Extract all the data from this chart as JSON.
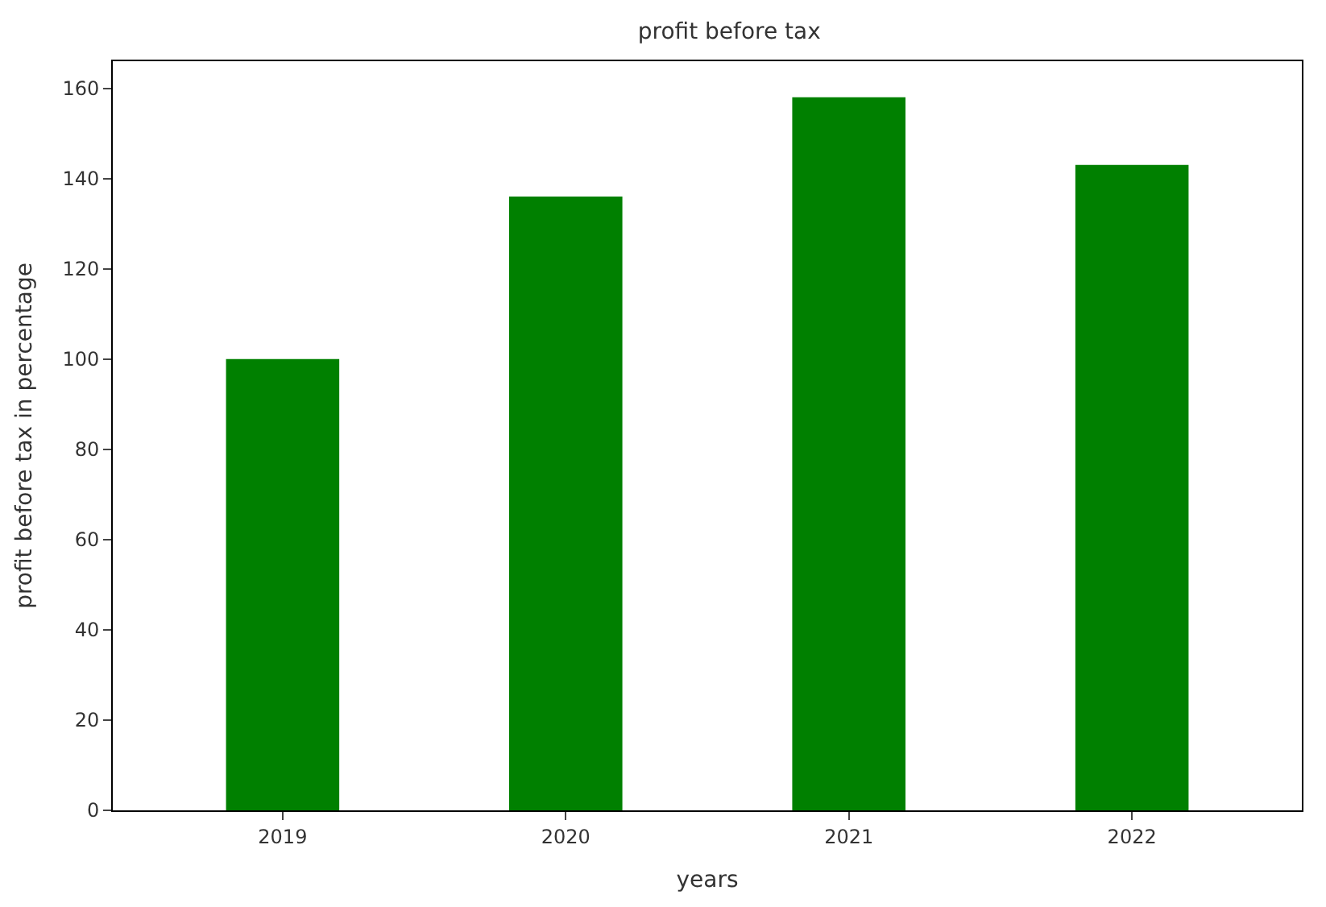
{
  "chart_data": {
    "type": "bar",
    "title": "profit before tax",
    "xlabel": "years",
    "ylabel": "profit before tax in percentage",
    "categories": [
      "2019",
      "2020",
      "2021",
      "2022"
    ],
    "values": [
      100,
      136,
      158,
      143
    ],
    "color": "#008000",
    "ylim": [
      0,
      166
    ],
    "yticks": [
      0,
      20,
      40,
      60,
      80,
      100,
      120,
      140,
      160
    ],
    "grid": false,
    "legend": false
  }
}
